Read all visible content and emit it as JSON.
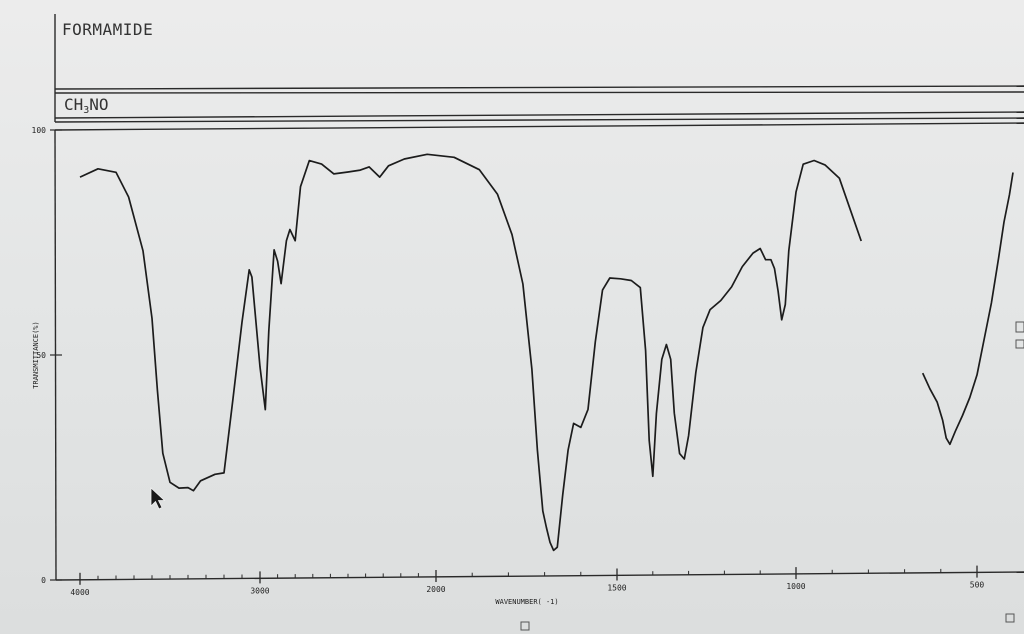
{
  "compound": {
    "name": "FORMAMIDE",
    "formula_prefix": "CH",
    "formula_sub": "3",
    "formula_suffix": "NO"
  },
  "cursor_icon": "arrow-pointer-icon",
  "colors": {
    "trace": "#1c1c1c",
    "frame": "#2a2a2a",
    "background": "#e6e8e8"
  },
  "chart_data": {
    "type": "line",
    "title": "",
    "xlabel": "WAVENUMBER( -1)",
    "ylabel": "TRANSMITTANCE(%)",
    "xlim": [
      4000,
      450
    ],
    "ylim": [
      0,
      100
    ],
    "x_axis_reversed": true,
    "xticks": [
      4000,
      3000,
      2000,
      1500,
      1000,
      500
    ],
    "xtick_labels": [
      "4000",
      "3000",
      "2000",
      "1500",
      "1000",
      "500"
    ],
    "yticks": [
      0,
      50,
      100
    ],
    "ytick_labels": [
      "0",
      "50",
      "100"
    ],
    "grid": false,
    "series": [
      {
        "points": [
          [
            4000,
            89.5
          ],
          [
            3900,
            91.3
          ],
          [
            3800,
            90.5
          ],
          [
            3730,
            85
          ],
          [
            3650,
            73
          ],
          [
            3600,
            58
          ],
          [
            3570,
            42
          ],
          [
            3540,
            28
          ],
          [
            3500,
            21.5
          ],
          [
            3450,
            20.2
          ],
          [
            3400,
            20.3
          ],
          [
            3370,
            19.6
          ],
          [
            3330,
            21.8
          ],
          [
            3250,
            23.2
          ],
          [
            3200,
            23.5
          ],
          [
            3150,
            40
          ],
          [
            3100,
            57
          ],
          [
            3060,
            68.6
          ],
          [
            3045,
            67
          ],
          [
            3000,
            47
          ],
          [
            2970,
            37.5
          ],
          [
            2950,
            55
          ],
          [
            2920,
            73
          ],
          [
            2900,
            70.5
          ],
          [
            2880,
            65.5
          ],
          [
            2850,
            75
          ],
          [
            2830,
            77.5
          ],
          [
            2800,
            75
          ],
          [
            2770,
            87
          ],
          [
            2720,
            92.8
          ],
          [
            2650,
            92
          ],
          [
            2580,
            89.8
          ],
          [
            2500,
            90.2
          ],
          [
            2430,
            90.6
          ],
          [
            2380,
            91.3
          ],
          [
            2320,
            89
          ],
          [
            2270,
            91.5
          ],
          [
            2180,
            93
          ],
          [
            2050,
            94
          ],
          [
            1950,
            93.3
          ],
          [
            1880,
            90.5
          ],
          [
            1830,
            85
          ],
          [
            1790,
            76
          ],
          [
            1760,
            65
          ],
          [
            1735,
            46
          ],
          [
            1720,
            28
          ],
          [
            1705,
            14.5
          ],
          [
            1695,
            10.8
          ],
          [
            1685,
            7.5
          ],
          [
            1675,
            5.7
          ],
          [
            1665,
            6.4
          ],
          [
            1650,
            18
          ],
          [
            1635,
            28
          ],
          [
            1620,
            33.9
          ],
          [
            1600,
            33
          ],
          [
            1580,
            37
          ],
          [
            1560,
            52
          ],
          [
            1540,
            63.5
          ],
          [
            1520,
            66.2
          ],
          [
            1490,
            66
          ],
          [
            1460,
            65.6
          ],
          [
            1435,
            64
          ],
          [
            1420,
            50
          ],
          [
            1410,
            30
          ],
          [
            1400,
            22
          ],
          [
            1390,
            36
          ],
          [
            1375,
            48
          ],
          [
            1362,
            51.3
          ],
          [
            1350,
            48
          ],
          [
            1340,
            36
          ],
          [
            1325,
            27
          ],
          [
            1312,
            25.8
          ],
          [
            1300,
            31
          ],
          [
            1280,
            45
          ],
          [
            1260,
            55
          ],
          [
            1240,
            59
          ],
          [
            1210,
            61
          ],
          [
            1180,
            64
          ],
          [
            1150,
            68.5
          ],
          [
            1120,
            71.5
          ],
          [
            1100,
            72.5
          ],
          [
            1085,
            70
          ],
          [
            1070,
            70
          ],
          [
            1060,
            68
          ],
          [
            1050,
            63
          ],
          [
            1040,
            56.6
          ],
          [
            1030,
            60
          ],
          [
            1020,
            72
          ],
          [
            1000,
            85
          ],
          [
            980,
            91.2
          ],
          [
            950,
            92
          ],
          [
            920,
            91
          ],
          [
            880,
            88
          ],
          [
            850,
            81
          ],
          [
            820,
            74
          ]
        ]
      },
      {
        "points": [
          [
            650,
            44.5
          ],
          [
            630,
            41
          ],
          [
            610,
            38
          ],
          [
            595,
            34
          ],
          [
            585,
            30
          ],
          [
            575,
            28.6
          ],
          [
            560,
            31.5
          ],
          [
            540,
            35
          ],
          [
            520,
            39
          ],
          [
            500,
            44
          ],
          [
            480,
            52
          ],
          [
            460,
            60
          ],
          [
            440,
            70
          ],
          [
            425,
            78
          ],
          [
            410,
            84
          ],
          [
            400,
            89
          ]
        ]
      }
    ]
  }
}
